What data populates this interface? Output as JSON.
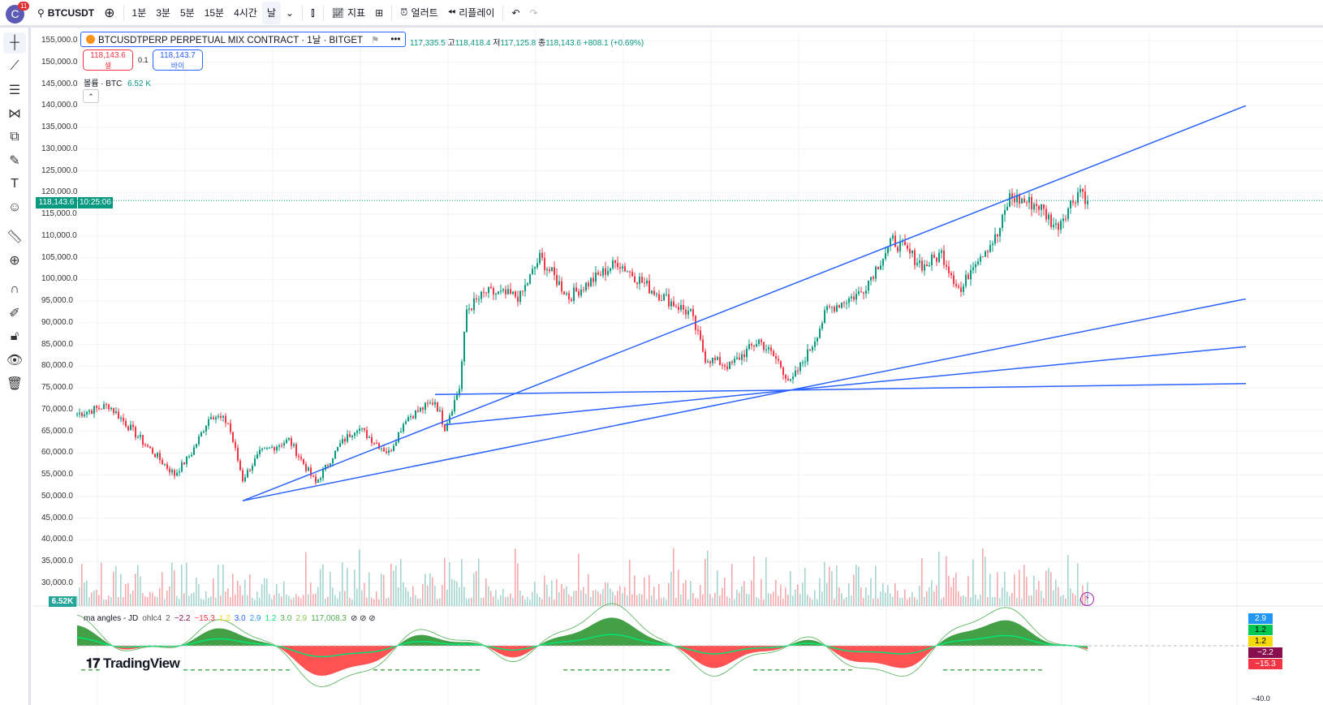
{
  "toolbar": {
    "avatar": "C",
    "notifications": "11",
    "symbol": "BTCUSDT",
    "intervals": [
      "1분",
      "3분",
      "5분",
      "15분",
      "4시간",
      "날"
    ],
    "indicators": "지표",
    "alerts": "얼러트",
    "replay": "리플레이"
  },
  "legend": {
    "title": "BTCUSDTPERP PERPETUAL MIX CONTRACT · 1날 · BITGET",
    "open": "117,335.5",
    "high_label": "고",
    "high": "118,418.4",
    "low_label": "저",
    "low": "117,125.8",
    "close_label": "종",
    "close": "118,143.6",
    "change": "+808.1 (+0.69%)"
  },
  "trade": {
    "sell_price": "118,143.6",
    "sell_label": "셀",
    "spread": "0.1",
    "buy_price": "118,143.7",
    "buy_label": "바이"
  },
  "volume": {
    "label": "볼륨 · BTC",
    "value": "6.52 K",
    "axis_badge": "6.52K"
  },
  "price_axis": [
    "155,000.0",
    "150,000.0",
    "145,000.0",
    "140,000.0",
    "135,000.0",
    "130,000.0",
    "125,000.0",
    "120,000.0",
    "115,000.0",
    "110,000.0",
    "105,000.0",
    "100,000.0",
    "95,000.0",
    "90,000.0",
    "85,000.0",
    "80,000.0",
    "75,000.0",
    "70,000.0",
    "65,000.0",
    "60,000.0",
    "55,000.0",
    "50,000.0",
    "45,000.0",
    "40,000.0",
    "35,000.0",
    "30,000.0"
  ],
  "last_price": {
    "price": "118,143.6",
    "countdown": "10:25:06",
    "value": 118143.6
  },
  "indicator": {
    "name": "ma angles - JD",
    "source": "ohlc4",
    "len": "2",
    "values": [
      {
        "v": "−2.2",
        "c": "#880e4f"
      },
      {
        "v": "−15.3",
        "c": "#f23645"
      },
      {
        "v": "1.2",
        "c": "#f5d90a"
      },
      {
        "v": "3.0",
        "c": "#2962ff"
      },
      {
        "v": "2.9",
        "c": "#2196f3"
      },
      {
        "v": "1.2",
        "c": "#00e676"
      },
      {
        "v": "3.0",
        "c": "#4caf50"
      },
      {
        "v": "2.9",
        "c": "#8bc34a"
      },
      {
        "v": "117,008.3",
        "c": "#4caf50"
      }
    ],
    "axis_badges": [
      {
        "v": "2.9",
        "c": "#2196f3"
      },
      {
        "v": "1.2",
        "c": "#00c853"
      },
      {
        "v": "1.2",
        "c": "#f5d90a"
      },
      {
        "v": "−2.2",
        "c": "#880e4f"
      },
      {
        "v": "−15.3",
        "c": "#f23645"
      }
    ],
    "axis_min": "−40.0"
  },
  "logo": "TradingView",
  "colors": {
    "up": "#089981",
    "down": "#f23645",
    "line": "#2962ff"
  },
  "price_keypoints": [
    [
      0,
      69000
    ],
    [
      13,
      71000
    ],
    [
      28,
      62000
    ],
    [
      40,
      55000
    ],
    [
      47,
      60000
    ],
    [
      55,
      69000
    ],
    [
      62,
      67000
    ],
    [
      68,
      54000
    ],
    [
      75,
      60000
    ],
    [
      87,
      63000
    ],
    [
      98,
      53000
    ],
    [
      108,
      62000
    ],
    [
      115,
      66000
    ],
    [
      128,
      60000
    ],
    [
      135,
      68000
    ],
    [
      147,
      72000
    ],
    [
      151,
      66000
    ],
    [
      157,
      75000
    ],
    [
      160,
      93000
    ],
    [
      168,
      97000
    ],
    [
      182,
      96000
    ],
    [
      190,
      105000
    ],
    [
      202,
      96000
    ],
    [
      222,
      104000
    ],
    [
      235,
      98000
    ],
    [
      252,
      92000
    ],
    [
      258,
      82000
    ],
    [
      268,
      80000
    ],
    [
      280,
      86000
    ],
    [
      288,
      81000
    ],
    [
      293,
      76000
    ],
    [
      302,
      85000
    ],
    [
      308,
      93000
    ],
    [
      322,
      97000
    ],
    [
      335,
      109000
    ],
    [
      348,
      103000
    ],
    [
      355,
      106000
    ],
    [
      363,
      97000
    ],
    [
      368,
      104000
    ],
    [
      378,
      110000
    ],
    [
      383,
      119000
    ],
    [
      395,
      117000
    ],
    [
      402,
      112000
    ],
    [
      412,
      121000
    ],
    [
      415,
      118143
    ]
  ],
  "trend_lines": [
    [
      [
        68,
        49000
      ],
      [
        480,
        140000
      ]
    ],
    [
      [
        293,
        74500
      ],
      [
        480,
        95500
      ]
    ],
    [
      [
        293,
        74500
      ],
      [
        480,
        84500
      ]
    ],
    [
      [
        293,
        74500
      ],
      [
        480,
        76000
      ]
    ],
    [
      [
        151,
        66500
      ],
      [
        293,
        74500
      ]
    ],
    [
      [
        147,
        73500
      ],
      [
        293,
        74500
      ]
    ],
    [
      [
        68,
        49000
      ],
      [
        293,
        74500
      ]
    ]
  ]
}
